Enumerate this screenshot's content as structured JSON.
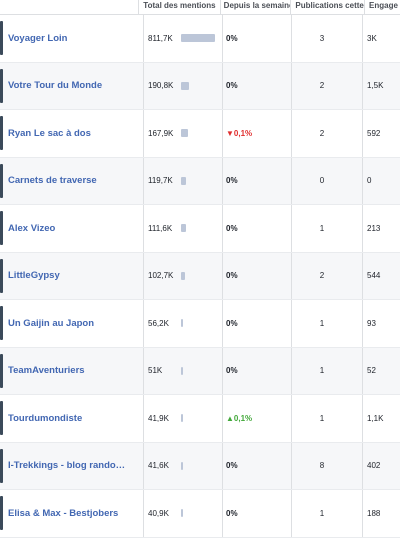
{
  "header": {
    "name": "",
    "mentions": "Total des mentions",
    "change": "Depuis la semaine",
    "publications": "Publications cette",
    "engagement": "Engage"
  },
  "rows": [
    {
      "name": "Voyager Loin",
      "mentions": "811,7K",
      "bar_fraction": 1.0,
      "change": "0%",
      "trend": "none",
      "publications": "3",
      "engagement": "3K"
    },
    {
      "name": "Votre Tour du Monde",
      "mentions": "190,8K",
      "bar_fraction": 0.235,
      "change": "0%",
      "trend": "none",
      "publications": "2",
      "engagement": "1,5K"
    },
    {
      "name": "Ryan Le sac à dos",
      "mentions": "167,9K",
      "bar_fraction": 0.207,
      "change": "▼0,1%",
      "trend": "down",
      "publications": "2",
      "engagement": "592"
    },
    {
      "name": "Carnets de traverse",
      "mentions": "119,7K",
      "bar_fraction": 0.147,
      "change": "0%",
      "trend": "none",
      "publications": "0",
      "engagement": "0"
    },
    {
      "name": "Alex Vizeo",
      "mentions": "111,6K",
      "bar_fraction": 0.137,
      "change": "0%",
      "trend": "none",
      "publications": "1",
      "engagement": "213"
    },
    {
      "name": "LittleGypsy",
      "mentions": "102,7K",
      "bar_fraction": 0.127,
      "change": "0%",
      "trend": "none",
      "publications": "2",
      "engagement": "544"
    },
    {
      "name": "Un Gaijin au Japon",
      "mentions": "56,2K",
      "bar_fraction": 0.069,
      "change": "0%",
      "trend": "none",
      "publications": "1",
      "engagement": "93"
    },
    {
      "name": "TeamAventuriers",
      "mentions": "51K",
      "bar_fraction": 0.063,
      "change": "0%",
      "trend": "none",
      "publications": "1",
      "engagement": "52"
    },
    {
      "name": "Tourdumondiste",
      "mentions": "41,9K",
      "bar_fraction": 0.052,
      "change": "▲0,1%",
      "trend": "up",
      "publications": "1",
      "engagement": "1,1K"
    },
    {
      "name": "I-Trekkings - blog rando…",
      "mentions": "41,6K",
      "bar_fraction": 0.051,
      "change": "0%",
      "trend": "none",
      "publications": "8",
      "engagement": "402"
    },
    {
      "name": "Elisa & Max - Bestjobers",
      "mentions": "40,9K",
      "bar_fraction": 0.05,
      "change": "0%",
      "trend": "none",
      "publications": "1",
      "engagement": "188"
    }
  ],
  "colors": {
    "link": "#4267b2",
    "bar": "#bcc6d8",
    "down": "#e02d2d",
    "up": "#42a83a"
  }
}
